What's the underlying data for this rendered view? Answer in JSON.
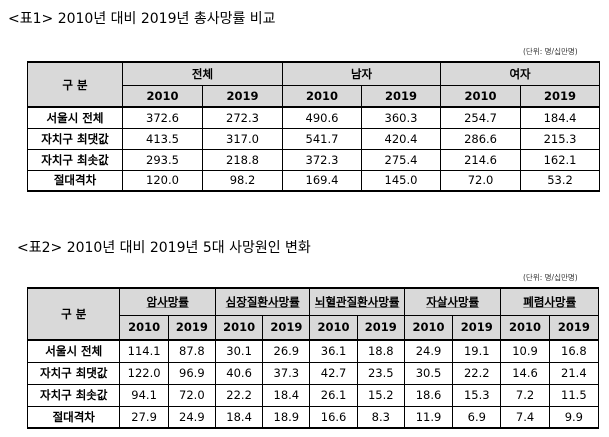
{
  "table1": {
    "title": "<표1> 2010년 대비 2019년 총사망률 비교",
    "unit": "(단위: 명/십만명)",
    "corner": "구 분",
    "groups": [
      "전체",
      "남자",
      "여자"
    ],
    "years": [
      "2010",
      "2019",
      "2010",
      "2019",
      "2010",
      "2019"
    ],
    "rows": [
      {
        "label": "서울시 전체",
        "values": [
          "372.6",
          "272.3",
          "490.6",
          "360.3",
          "254.7",
          "184.4"
        ]
      },
      {
        "label": "자치구 최댓값",
        "values": [
          "413.5",
          "317.0",
          "541.7",
          "420.4",
          "286.6",
          "215.3"
        ]
      },
      {
        "label": "자치구 최솟값",
        "values": [
          "293.5",
          "218.8",
          "372.3",
          "275.4",
          "214.6",
          "162.1"
        ]
      },
      {
        "label": "절대격차",
        "values": [
          "120.0",
          "98.2",
          "169.4",
          "145.0",
          "72.0",
          "53.2"
        ]
      }
    ]
  },
  "table2": {
    "title": "<표2> 2010년 대비 2019년 5대 사망원인 변화",
    "unit": "(단위: 명/십만명)",
    "corner": "구 분",
    "groups": [
      "암사망률",
      "심장질환사망률",
      "뇌혈관질환사망률",
      "자살사망률",
      "폐렴사망률"
    ],
    "years": [
      "2010",
      "2019",
      "2010",
      "2019",
      "2010",
      "2019",
      "2010",
      "2019",
      "2010",
      "2019"
    ],
    "rows": [
      {
        "label": "서울시 전체",
        "values": [
          "114.1",
          "87.8",
          "30.1",
          "26.9",
          "36.1",
          "18.8",
          "24.9",
          "19.1",
          "10.9",
          "16.8"
        ]
      },
      {
        "label": "자치구 최댓값",
        "values": [
          "122.0",
          "96.9",
          "40.6",
          "37.3",
          "42.7",
          "23.5",
          "30.5",
          "22.2",
          "14.6",
          "21.4"
        ]
      },
      {
        "label": "자치구 최솟값",
        "values": [
          "94.1",
          "72.0",
          "22.2",
          "18.4",
          "26.1",
          "15.2",
          "18.6",
          "15.3",
          "7.2",
          "11.5"
        ]
      },
      {
        "label": "절대격차",
        "values": [
          "27.9",
          "24.9",
          "18.4",
          "18.9",
          "16.6",
          "8.3",
          "11.9",
          "6.9",
          "7.4",
          "9.9"
        ]
      }
    ]
  }
}
